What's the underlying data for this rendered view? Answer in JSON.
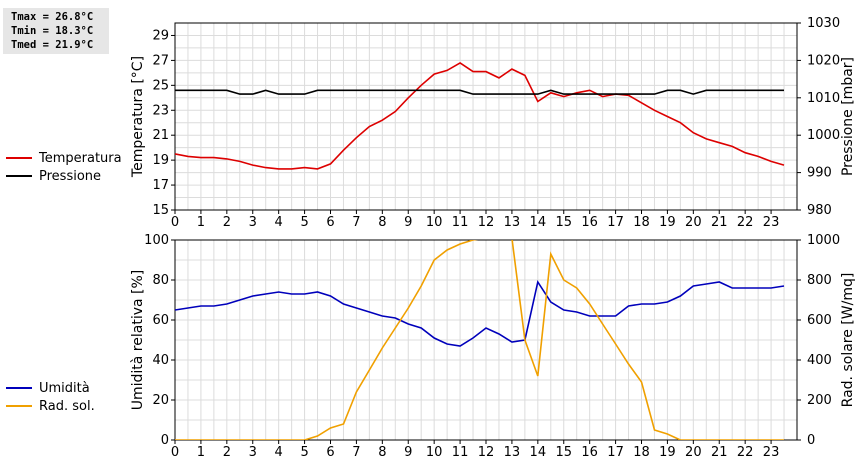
{
  "stats": {
    "tmax": "Tmax = 26.8°C",
    "tmin": "Tmin = 18.3°C",
    "tmed": "Tmed = 21.9°C"
  },
  "chart_data": [
    {
      "type": "line",
      "x_ticks": [
        "0",
        "1",
        "2",
        "3",
        "4",
        "5",
        "6",
        "7",
        "8",
        "9",
        "10",
        "11",
        "12",
        "13",
        "14",
        "15",
        "16",
        "17",
        "18",
        "19",
        "20",
        "21",
        "22",
        "23"
      ],
      "ylabel_left": "Temperatura [°C]",
      "ylabel_right": "Pressione [mbar]",
      "ylim_left": [
        15,
        30
      ],
      "yticks_left": [
        "15",
        "17",
        "19",
        "21",
        "23",
        "25",
        "27",
        "29"
      ],
      "ylim_right": [
        980,
        1030
      ],
      "yticks_right": [
        "980",
        "990",
        "1000",
        "1010",
        "1020",
        "1030"
      ],
      "grid": true,
      "legend_position": "left",
      "series": [
        {
          "name": "Temperatura",
          "axis": "left",
          "color": "#dd0000",
          "x": [
            0,
            0.5,
            1,
            1.5,
            2,
            2.5,
            3,
            3.5,
            4,
            4.5,
            5,
            5.5,
            6,
            6.5,
            7,
            7.5,
            8,
            8.5,
            9,
            9.5,
            10,
            10.5,
            11,
            11.5,
            12,
            12.5,
            13,
            13.5,
            14,
            14.5,
            15,
            15.5,
            16,
            16.5,
            17,
            17.5,
            18,
            18.5,
            19,
            19.5,
            20,
            20.5,
            21,
            21.5,
            22,
            22.5,
            23,
            23.5
          ],
          "y": [
            19.5,
            19.3,
            19.2,
            19.2,
            19.1,
            18.9,
            18.6,
            18.4,
            18.3,
            18.3,
            18.4,
            18.3,
            18.7,
            19.8,
            20.8,
            21.7,
            22.2,
            22.9,
            24.0,
            25.0,
            25.9,
            26.2,
            26.8,
            26.1,
            26.1,
            25.6,
            26.3,
            25.8,
            23.7,
            24.4,
            24.1,
            24.4,
            24.6,
            24.1,
            24.3,
            24.2,
            23.6,
            23.0,
            22.5,
            22.0,
            21.2,
            20.7,
            20.4,
            20.1,
            19.6,
            19.3,
            18.9,
            18.6
          ]
        },
        {
          "name": "Pressione",
          "axis": "right",
          "color": "#000000",
          "x": [
            0,
            0.5,
            1,
            1.5,
            2,
            2.5,
            3,
            3.5,
            4,
            4.5,
            5,
            5.5,
            6,
            6.5,
            7,
            7.5,
            8,
            8.5,
            9,
            9.5,
            10,
            10.5,
            11,
            11.5,
            12,
            12.5,
            13,
            13.5,
            14,
            14.5,
            15,
            15.5,
            16,
            16.5,
            17,
            17.5,
            18,
            18.5,
            19,
            19.5,
            20,
            20.5,
            21,
            21.5,
            22,
            22.5,
            23,
            23.5
          ],
          "y": [
            1012,
            1012,
            1012,
            1012,
            1012,
            1011,
            1011,
            1012,
            1011,
            1011,
            1011,
            1012,
            1012,
            1012,
            1012,
            1012,
            1012,
            1012,
            1012,
            1012,
            1012,
            1012,
            1012,
            1011,
            1011,
            1011,
            1011,
            1011,
            1011,
            1012,
            1011,
            1011,
            1011,
            1011,
            1011,
            1011,
            1011,
            1011,
            1012,
            1012,
            1011,
            1012,
            1012,
            1012,
            1012,
            1012,
            1012,
            1012
          ]
        }
      ]
    },
    {
      "type": "line",
      "x_ticks": [
        "0",
        "1",
        "2",
        "3",
        "4",
        "5",
        "6",
        "7",
        "8",
        "9",
        "10",
        "11",
        "12",
        "13",
        "14",
        "15",
        "16",
        "17",
        "18",
        "19",
        "20",
        "21",
        "22",
        "23"
      ],
      "ylabel_left": "Umidità relativa [%]",
      "ylabel_right": "Rad. solare [W/mq]",
      "ylim_left": [
        0,
        100
      ],
      "yticks_left": [
        "0",
        "20",
        "40",
        "60",
        "80",
        "100"
      ],
      "ylim_right": [
        0,
        1000
      ],
      "yticks_right": [
        "0",
        "200",
        "400",
        "600",
        "800",
        "1000"
      ],
      "grid": true,
      "legend_position": "left",
      "series": [
        {
          "name": "Umidità",
          "axis": "left",
          "color": "#0000bb",
          "x": [
            0,
            0.5,
            1,
            1.5,
            2,
            2.5,
            3,
            3.5,
            4,
            4.5,
            5,
            5.5,
            6,
            6.5,
            7,
            7.5,
            8,
            8.5,
            9,
            9.5,
            10,
            10.5,
            11,
            11.5,
            12,
            12.5,
            13,
            13.5,
            14,
            14.5,
            15,
            15.5,
            16,
            16.5,
            17,
            17.5,
            18,
            18.5,
            19,
            19.5,
            20,
            20.5,
            21,
            21.5,
            22,
            22.5,
            23,
            23.5
          ],
          "y": [
            65,
            66,
            67,
            67,
            68,
            70,
            72,
            73,
            74,
            73,
            73,
            74,
            72,
            68,
            66,
            64,
            62,
            61,
            58,
            56,
            51,
            48,
            47,
            51,
            56,
            53,
            49,
            50,
            79,
            69,
            65,
            64,
            62,
            62,
            62,
            67,
            68,
            68,
            69,
            72,
            77,
            78,
            79,
            76,
            76,
            76,
            76,
            77
          ]
        },
        {
          "name": "Rad. sol.",
          "axis": "right",
          "color": "#f0a000",
          "x": [
            0,
            0.5,
            1,
            1.5,
            2,
            2.5,
            3,
            3.5,
            4,
            4.5,
            5,
            5.5,
            6,
            6.5,
            7,
            7.5,
            8,
            8.5,
            9,
            9.5,
            10,
            10.5,
            11,
            11.5,
            12,
            12.5,
            13,
            13.5,
            14,
            14.5,
            15,
            15.5,
            16,
            16.5,
            17,
            17.5,
            18,
            18.5,
            19,
            19.5,
            20,
            20.5,
            21,
            21.5,
            22,
            22.5,
            23,
            23.5
          ],
          "y": [
            0,
            0,
            0,
            0,
            0,
            0,
            0,
            0,
            0,
            0,
            0,
            20,
            60,
            80,
            240,
            350,
            460,
            560,
            660,
            770,
            900,
            950,
            980,
            1000,
            1010,
            1020,
            1010,
            500,
            320,
            930,
            800,
            760,
            680,
            580,
            480,
            380,
            290,
            50,
            30,
            0,
            0,
            0,
            0,
            0,
            0,
            0,
            0,
            0
          ]
        }
      ]
    }
  ]
}
